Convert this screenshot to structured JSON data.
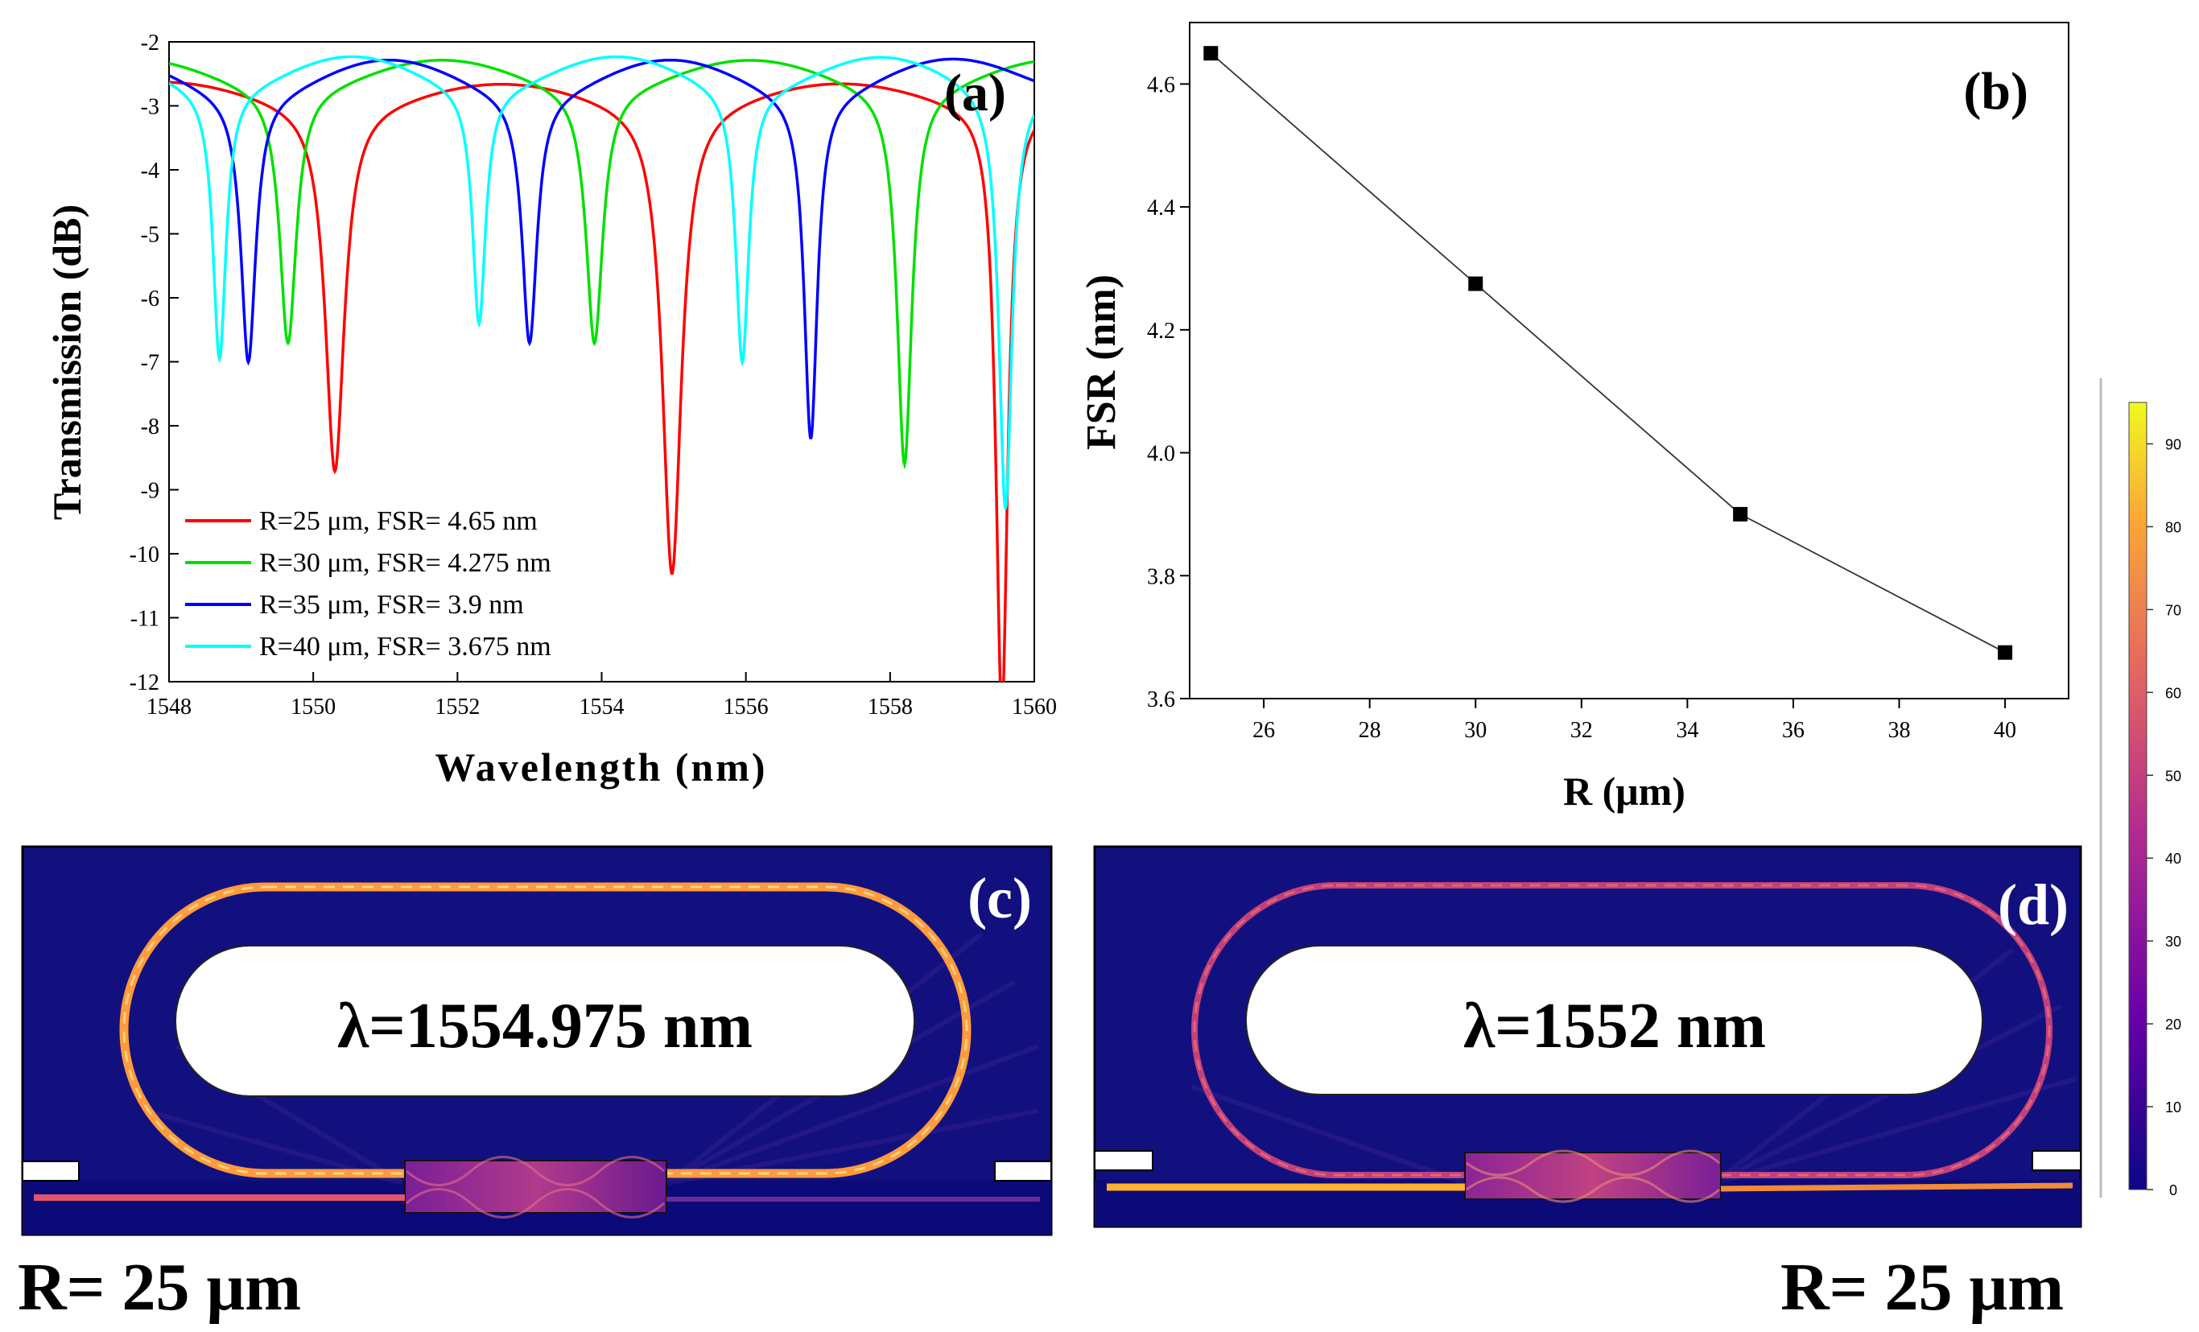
{
  "chart_data": [
    {
      "panel": "(a)",
      "type": "line",
      "xlabel": "Wavelength (nm)",
      "ylabel": "Transmission (dB)",
      "xlim": [
        1548,
        1560
      ],
      "ylim": [
        -12,
        -2
      ],
      "xticks": [
        "1548",
        "1550",
        "1552",
        "1554",
        "1556",
        "1558",
        "1560"
      ],
      "yticks": [
        "-2",
        "-3",
        "-4",
        "-5",
        "-6",
        "-7",
        "-8",
        "-9",
        "-10",
        "-11",
        "-12"
      ],
      "legend_position": "bottom-left",
      "series": [
        {
          "name": "R=25 μm, FSR= 4.65 nm",
          "color": "#ff0000",
          "fsr": 4.65,
          "resonances": [
            1550.3,
            1554.975,
            1559.55
          ],
          "depths": [
            -8.7,
            -10.3,
            -12.5
          ],
          "widths": [
            0.32,
            0.32,
            0.2
          ],
          "baseline": -2.6,
          "ripple": 0.35
        },
        {
          "name": "R=30 μm, FSR= 4.275 nm",
          "color": "#00e000",
          "fsr": 4.275,
          "resonances": [
            1549.65,
            1553.9,
            1558.2
          ],
          "depths": [
            -6.7,
            -6.7,
            -8.6
          ],
          "widths": [
            0.28,
            0.28,
            0.25
          ],
          "baseline": -2.25,
          "ripple": 0.45
        },
        {
          "name": "R=35 μm, FSR= 3.9 nm",
          "color": "#0000ff",
          "fsr": 3.9,
          "resonances": [
            1549.1,
            1553.0,
            1556.9
          ],
          "depths": [
            -7.0,
            -6.7,
            -8.2
          ],
          "widths": [
            0.25,
            0.25,
            0.22
          ],
          "baseline": -2.25,
          "ripple": 0.55
        },
        {
          "name": "R=40 μm, FSR= 3.675 nm",
          "color": "#00ffff",
          "fsr": 3.675,
          "resonances": [
            1548.7,
            1552.3,
            1555.95,
            1559.6
          ],
          "depths": [
            -6.95,
            -6.4,
            -7.0,
            -9.3
          ],
          "widths": [
            0.22,
            0.22,
            0.22,
            0.22
          ],
          "baseline": -2.2,
          "ripple": 0.5
        }
      ]
    },
    {
      "panel": "(b)",
      "type": "line",
      "xlabel": "R (μm)",
      "ylabel": "FSR (nm)",
      "xlim": [
        24.6,
        41.2
      ],
      "ylim": [
        3.6,
        4.7
      ],
      "xticks": [
        "26",
        "28",
        "30",
        "32",
        "34",
        "36",
        "38",
        "40"
      ],
      "yticks": [
        "3.6",
        "3.8",
        "4.0",
        "4.2",
        "4.4",
        "4.6"
      ],
      "x": [
        25,
        30,
        35,
        40
      ],
      "y": [
        4.65,
        4.275,
        3.9,
        3.675
      ]
    }
  ],
  "field_maps": {
    "c": {
      "label": "(c)",
      "wavelength_text": "λ=1554.975 nm",
      "radius_caption": "R= 25 μm"
    },
    "d": {
      "label": "(d)",
      "wavelength_text": "λ=1552 nm",
      "radius_caption": "R= 25 μm"
    }
  },
  "colorbar": {
    "ticks": [
      "0",
      "10",
      "20",
      "30",
      "40",
      "50",
      "60",
      "70",
      "80",
      "90"
    ],
    "min": 0,
    "max": 95,
    "colors": [
      "#0c0786",
      "#6a00a8",
      "#b12a90",
      "#e16462",
      "#fca636",
      "#f0f921"
    ]
  }
}
